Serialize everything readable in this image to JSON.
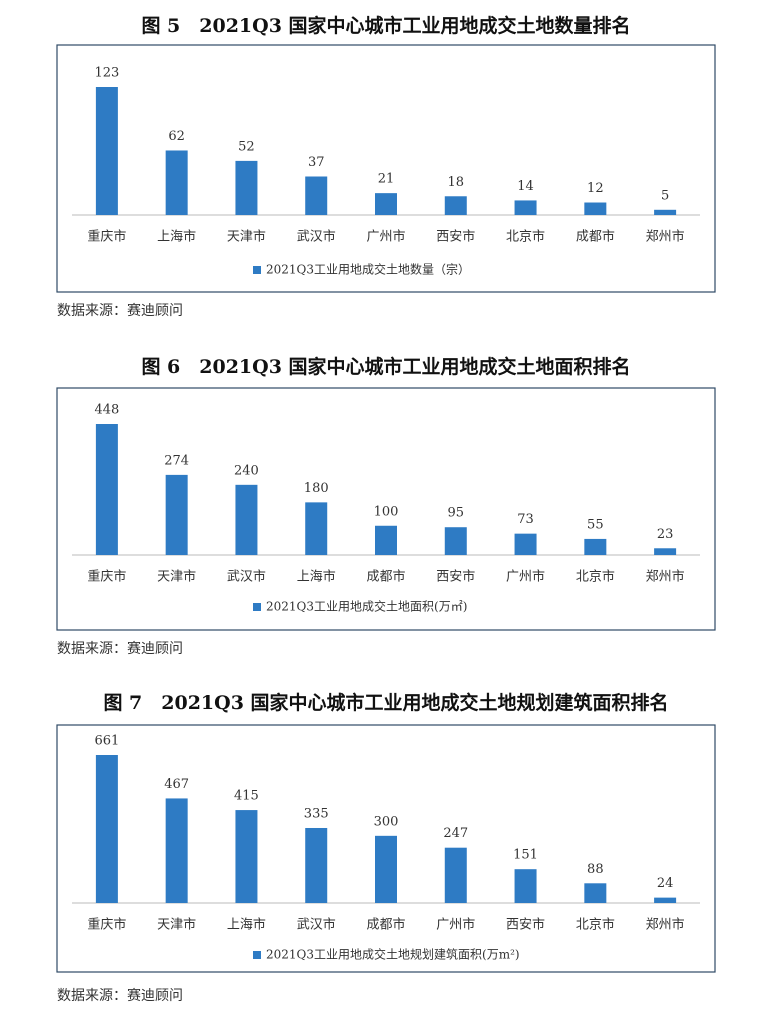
{
  "chart_data": [
    {
      "type": "bar",
      "title": "图 5　2021Q3 国家中心城市工业用地成交土地数量排名",
      "categories": [
        "重庆市",
        "上海市",
        "天津市",
        "武汉市",
        "广州市",
        "西安市",
        "北京市",
        "成都市",
        "郑州市"
      ],
      "series": [
        {
          "name": "2021Q3工业用地成交土地数量（宗）",
          "color": "#2e7bc4",
          "values": [
            123,
            62,
            52,
            37,
            21,
            18,
            14,
            12,
            5
          ]
        }
      ],
      "source": "数据来源：赛迪顾问"
    },
    {
      "type": "bar",
      "title": "图 6　2021Q3 国家中心城市工业用地成交土地面积排名",
      "categories": [
        "重庆市",
        "天津市",
        "武汉市",
        "上海市",
        "成都市",
        "西安市",
        "广州市",
        "北京市",
        "郑州市"
      ],
      "series": [
        {
          "name": "2021Q3工业用地成交土地面积(万㎡)",
          "color": "#2e7bc4",
          "values": [
            448,
            274,
            240,
            180,
            100,
            95,
            73,
            55,
            23
          ]
        }
      ],
      "source": "数据来源：赛迪顾问"
    },
    {
      "type": "bar",
      "title": "图 7　2021Q3 国家中心城市工业用地成交土地规划建筑面积排名",
      "categories": [
        "重庆市",
        "天津市",
        "上海市",
        "武汉市",
        "成都市",
        "广州市",
        "西安市",
        "北京市",
        "郑州市"
      ],
      "series": [
        {
          "name": "2021Q3工业用地成交土地规划建筑面积(万m²)",
          "color": "#2e7bc4",
          "values": [
            661,
            467,
            415,
            335,
            300,
            247,
            151,
            88,
            24
          ]
        }
      ],
      "source": "数据来源：赛迪顾问"
    }
  ]
}
